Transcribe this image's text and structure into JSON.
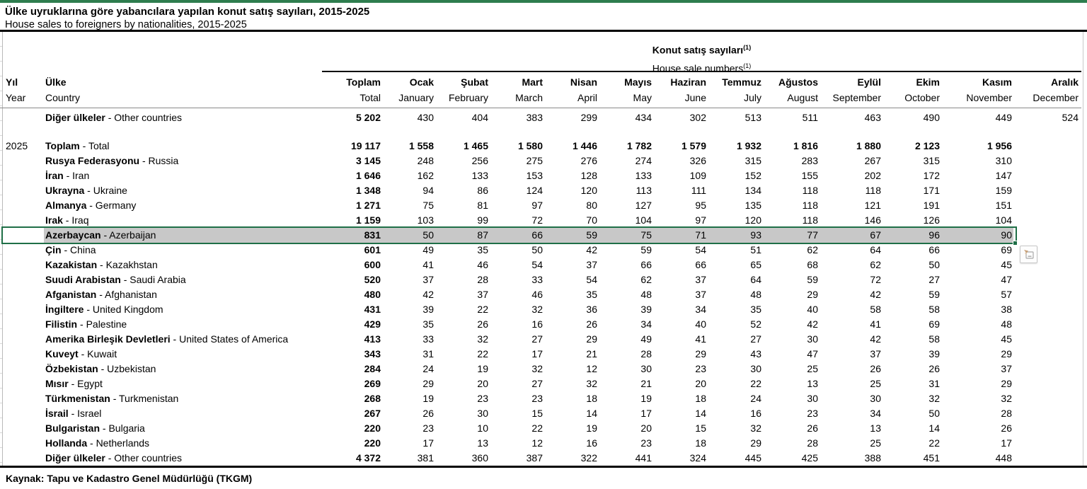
{
  "title": {
    "tr": "Ülke uyruklarına göre yabancılara yapılan konut satış sayıları, 2015-2025",
    "en": "House sales to foreigners by nationalities, 2015-2025"
  },
  "colors": {
    "accent-green": "#2e7d4e",
    "selection-border": "#1f6f47",
    "selection-fill": "#c8c8c8"
  },
  "table": {
    "group_header": {
      "tr": "Konut satış sayıları",
      "en": "House sale numbers",
      "sup": "(1)"
    },
    "columns": {
      "year": {
        "tr": "Yıl",
        "en": "Year"
      },
      "country": {
        "tr": "Ülke",
        "en": "Country"
      },
      "months": [
        {
          "tr": "Toplam",
          "en": "Total"
        },
        {
          "tr": "Ocak",
          "en": "January"
        },
        {
          "tr": "Şubat",
          "en": "February"
        },
        {
          "tr": "Mart",
          "en": "March"
        },
        {
          "tr": "Nisan",
          "en": "April"
        },
        {
          "tr": "Mayıs",
          "en": "May"
        },
        {
          "tr": "Haziran",
          "en": "June"
        },
        {
          "tr": "Temmuz",
          "en": "July"
        },
        {
          "tr": "Ağustos",
          "en": "August"
        },
        {
          "tr": "Eylül",
          "en": "September"
        },
        {
          "tr": "Ekim",
          "en": "October"
        },
        {
          "tr": "Kasım",
          "en": "November"
        },
        {
          "tr": "Aralık",
          "en": "December"
        }
      ]
    },
    "sections": [
      {
        "year": "",
        "rows": [
          {
            "tr": "Diğer ülkeler",
            "en": "Other countries",
            "values": [
              "5 202",
              "430",
              "404",
              "383",
              "299",
              "434",
              "302",
              "513",
              "511",
              "463",
              "490",
              "449",
              "524"
            ]
          }
        ]
      },
      {
        "year": "2025",
        "rows": [
          {
            "tr": "Toplam",
            "en": "Total",
            "bold_values": true,
            "values": [
              "19 117",
              "1 558",
              "1 465",
              "1 580",
              "1 446",
              "1 782",
              "1 579",
              "1 932",
              "1 816",
              "1 880",
              "2 123",
              "1 956",
              ""
            ]
          },
          {
            "tr": "Rusya Federasyonu",
            "en": "Russia",
            "values": [
              "3 145",
              "248",
              "256",
              "275",
              "276",
              "274",
              "326",
              "315",
              "283",
              "267",
              "315",
              "310",
              ""
            ]
          },
          {
            "tr": "İran",
            "en": "Iran",
            "values": [
              "1 646",
              "162",
              "133",
              "153",
              "128",
              "133",
              "109",
              "152",
              "155",
              "202",
              "172",
              "147",
              ""
            ]
          },
          {
            "tr": "Ukrayna",
            "en": "Ukraine",
            "values": [
              "1 348",
              "94",
              "86",
              "124",
              "120",
              "113",
              "111",
              "134",
              "118",
              "118",
              "171",
              "159",
              ""
            ]
          },
          {
            "tr": "Almanya",
            "en": "Germany",
            "values": [
              "1 271",
              "75",
              "81",
              "97",
              "80",
              "127",
              "95",
              "135",
              "118",
              "121",
              "191",
              "151",
              ""
            ]
          },
          {
            "tr": "Irak",
            "en": "Iraq",
            "values": [
              "1 159",
              "103",
              "99",
              "72",
              "70",
              "104",
              "97",
              "120",
              "118",
              "146",
              "126",
              "104",
              ""
            ]
          },
          {
            "tr": "Azerbaycan",
            "en": "Azerbaijan",
            "selected": true,
            "values": [
              "831",
              "50",
              "87",
              "66",
              "59",
              "75",
              "71",
              "93",
              "77",
              "67",
              "96",
              "90",
              ""
            ]
          },
          {
            "tr": "Çin",
            "en": "China",
            "values": [
              "601",
              "49",
              "35",
              "50",
              "42",
              "59",
              "54",
              "51",
              "62",
              "64",
              "66",
              "69",
              ""
            ]
          },
          {
            "tr": "Kazakistan",
            "en": "Kazakhstan",
            "values": [
              "600",
              "41",
              "46",
              "54",
              "37",
              "66",
              "66",
              "65",
              "68",
              "62",
              "50",
              "45",
              ""
            ]
          },
          {
            "tr": "Suudi Arabistan",
            "en": "Saudi Arabia",
            "values": [
              "520",
              "37",
              "28",
              "33",
              "54",
              "62",
              "37",
              "64",
              "59",
              "72",
              "27",
              "47",
              ""
            ]
          },
          {
            "tr": "Afganistan",
            "en": "Afghanistan",
            "values": [
              "480",
              "42",
              "37",
              "46",
              "35",
              "48",
              "37",
              "48",
              "29",
              "42",
              "59",
              "57",
              ""
            ]
          },
          {
            "tr": "İngiltere",
            "en": "United Kingdom",
            "values": [
              "431",
              "39",
              "22",
              "32",
              "36",
              "39",
              "34",
              "35",
              "40",
              "58",
              "58",
              "38",
              ""
            ]
          },
          {
            "tr": "Filistin",
            "en": "Palestine",
            "values": [
              "429",
              "35",
              "26",
              "16",
              "26",
              "34",
              "40",
              "52",
              "42",
              "41",
              "69",
              "48",
              ""
            ]
          },
          {
            "tr": "Amerika Birleşik Devletleri",
            "en": "United States of America",
            "values": [
              "413",
              "33",
              "32",
              "27",
              "29",
              "49",
              "41",
              "27",
              "30",
              "42",
              "58",
              "45",
              ""
            ]
          },
          {
            "tr": "Kuveyt",
            "en": "Kuwait",
            "values": [
              "343",
              "31",
              "22",
              "17",
              "21",
              "28",
              "29",
              "43",
              "47",
              "37",
              "39",
              "29",
              ""
            ]
          },
          {
            "tr": "Özbekistan",
            "en": "Uzbekistan",
            "values": [
              "284",
              "24",
              "19",
              "32",
              "12",
              "30",
              "23",
              "30",
              "25",
              "26",
              "26",
              "37",
              ""
            ]
          },
          {
            "tr": "Mısır",
            "en": "Egypt",
            "values": [
              "269",
              "29",
              "20",
              "27",
              "32",
              "21",
              "20",
              "22",
              "13",
              "25",
              "31",
              "29",
              ""
            ]
          },
          {
            "tr": "Türkmenistan",
            "en": "Turkmenistan",
            "values": [
              "268",
              "19",
              "23",
              "23",
              "18",
              "19",
              "18",
              "24",
              "30",
              "30",
              "32",
              "32",
              ""
            ]
          },
          {
            "tr": "İsrail",
            "en": "Israel",
            "values": [
              "267",
              "26",
              "30",
              "15",
              "14",
              "17",
              "14",
              "16",
              "23",
              "34",
              "50",
              "28",
              ""
            ]
          },
          {
            "tr": "Bulgaristan",
            "en": "Bulgaria",
            "values": [
              "220",
              "23",
              "10",
              "22",
              "19",
              "20",
              "15",
              "32",
              "26",
              "13",
              "14",
              "26",
              ""
            ]
          },
          {
            "tr": "Hollanda",
            "en": "Netherlands",
            "values": [
              "220",
              "17",
              "13",
              "12",
              "16",
              "23",
              "18",
              "29",
              "28",
              "25",
              "22",
              "17",
              ""
            ]
          },
          {
            "tr": "Diğer ülkeler",
            "en": "Other countries",
            "values": [
              "4 372",
              "381",
              "360",
              "387",
              "322",
              "441",
              "324",
              "445",
              "425",
              "388",
              "451",
              "448",
              ""
            ]
          }
        ]
      }
    ]
  },
  "source": "Kaynak: Tapu ve Kadastro Genel Müdürlüğü (TKGM)"
}
